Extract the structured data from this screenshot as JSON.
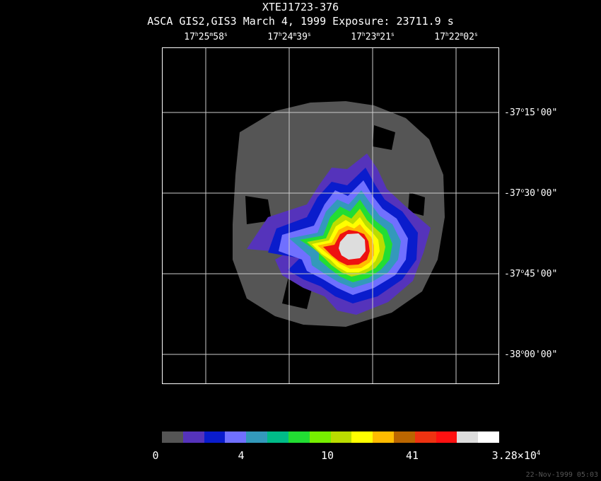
{
  "title": "XTEJ1723-376",
  "subtitle": "ASCA GIS2,GIS3 March 4, 1999 Exposure: 23711.9 s",
  "ra_labels": [
    {
      "h": "17",
      "hu": "h",
      "m": "25",
      "mu": "m",
      "s": "58",
      "su": "s"
    },
    {
      "h": "17",
      "hu": "h",
      "m": "24",
      "mu": "m",
      "s": "39",
      "su": "s"
    },
    {
      "h": "17",
      "hu": "h",
      "m": "23",
      "mu": "m",
      "s": "21",
      "su": "s"
    },
    {
      "h": "17",
      "hu": "h",
      "m": "22",
      "mu": "m",
      "s": "02",
      "su": "s"
    }
  ],
  "dec_labels": [
    {
      "d": "-37",
      "du": "o",
      "rest": "15'00\""
    },
    {
      "d": "-37",
      "du": "o",
      "rest": "30'00\""
    },
    {
      "d": "-37",
      "du": "o",
      "rest": "45'00\""
    },
    {
      "d": "-38",
      "du": "o",
      "rest": "00'00\""
    }
  ],
  "colorbar": {
    "colors": [
      "#555555",
      "#5533bb",
      "#0a1ccc",
      "#7070ff",
      "#3399bb",
      "#00bb88",
      "#22dd33",
      "#77ee00",
      "#bbdd00",
      "#ffff00",
      "#ffbb00",
      "#bb6600",
      "#ee3311",
      "#ff1111",
      "#dddddd",
      "#ffffff"
    ],
    "labels": [
      "0",
      "4",
      "10",
      "41"
    ],
    "max_mantissa": "3.28×10",
    "max_exp": "4"
  },
  "timestamp": "22-Nov-1999 05:03"
}
